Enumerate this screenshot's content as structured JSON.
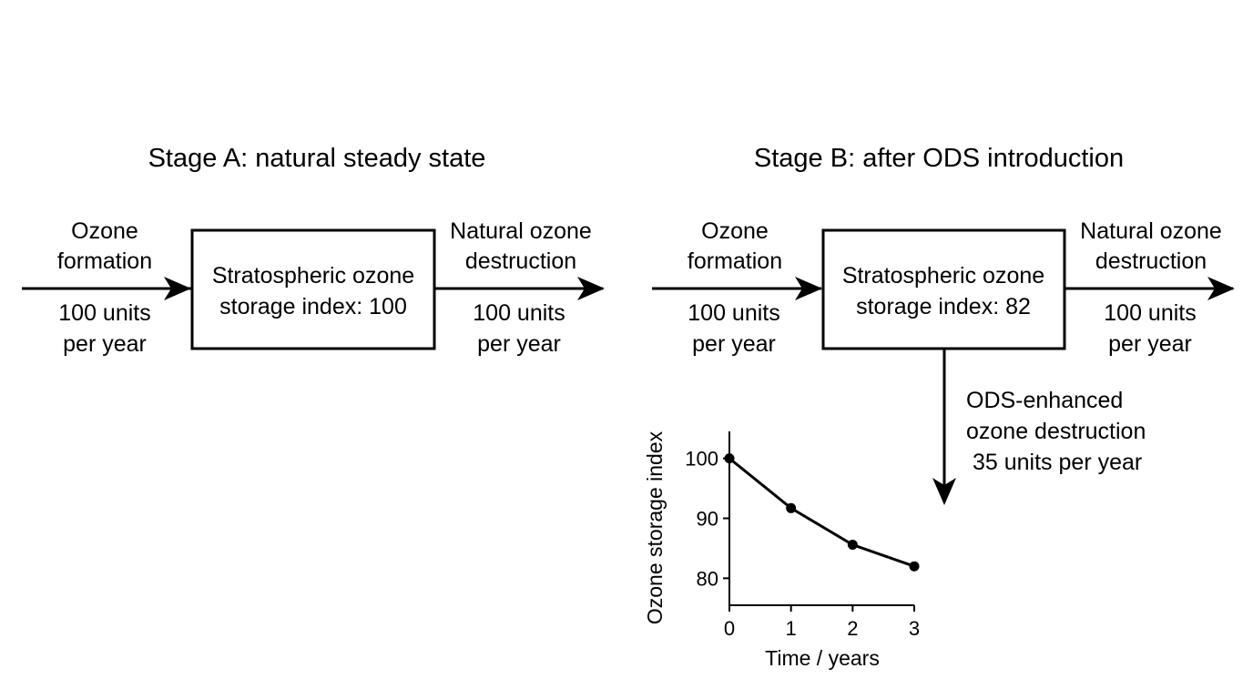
{
  "stage_a": {
    "title": "Stage A: natural steady state",
    "inflow": {
      "line1": "Ozone",
      "line2": "formation",
      "rate1": "100 units",
      "rate2": "per year"
    },
    "box": {
      "line1": "Stratospheric ozone",
      "line2": "storage index: 100"
    },
    "outflow": {
      "line1": "Natural ozone",
      "line2": "destruction",
      "rate1": "100 units",
      "rate2": "per year"
    }
  },
  "stage_b": {
    "title": "Stage B: after ODS introduction",
    "inflow": {
      "line1": "Ozone",
      "line2": "formation",
      "rate1": "100 units",
      "rate2": "per year"
    },
    "box": {
      "line1": "Stratospheric ozone",
      "line2": "storage index: 82"
    },
    "outflow": {
      "line1": "Natural ozone",
      "line2": "destruction",
      "rate1": "100 units",
      "rate2": "per year"
    },
    "ods_outflow": {
      "line1": "ODS-enhanced",
      "line2": "ozone destruction",
      "line3": "35 units per year"
    }
  },
  "chart_data": {
    "type": "line",
    "xlabel": "Time / years",
    "ylabel": "Ozone storage index",
    "x": [
      0,
      1,
      2,
      3
    ],
    "values": [
      100,
      91.7,
      85.6,
      82
    ],
    "xlim": [
      0,
      3
    ],
    "ylim": [
      75.5,
      104.5
    ],
    "xticks": [
      "0",
      "1",
      "2",
      "3"
    ],
    "yticks": [
      "80",
      "90",
      "100"
    ],
    "grid": false
  }
}
